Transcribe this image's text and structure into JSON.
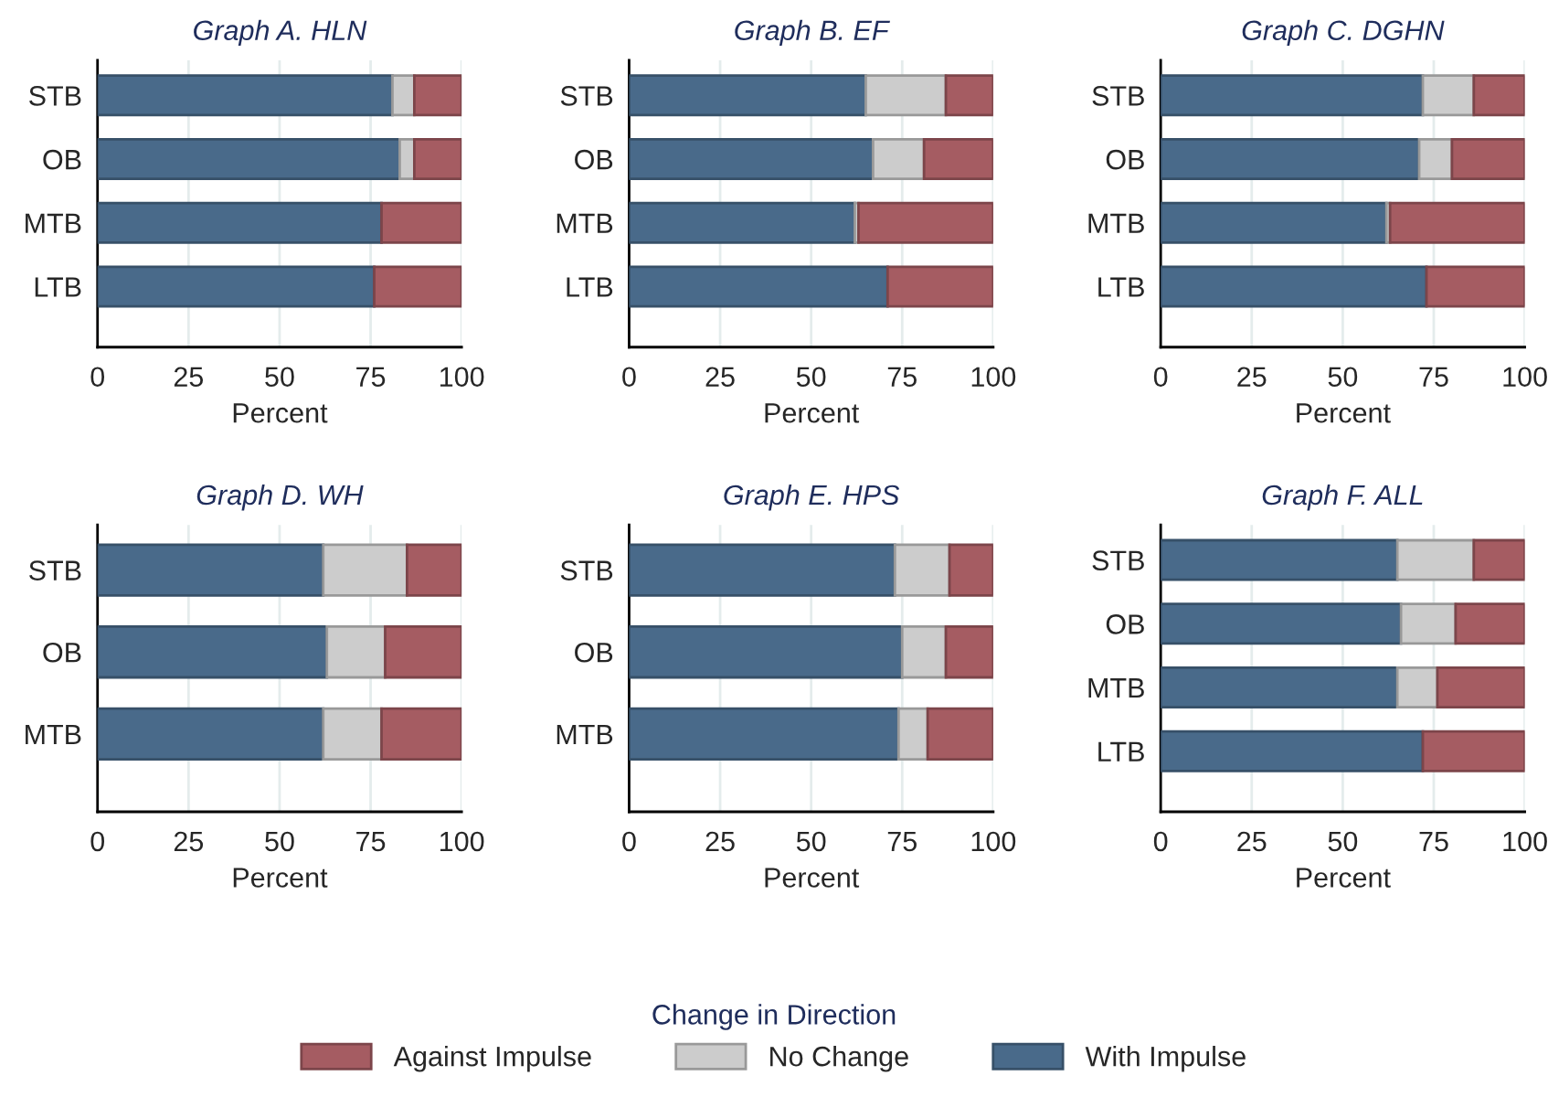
{
  "chart_data": [
    {
      "type": "bar",
      "orientation": "horizontal",
      "stacked": true,
      "title": "Graph A. HLN",
      "xlabel": "Percent",
      "categories": [
        "STB",
        "OB",
        "MTB",
        "LTB"
      ],
      "xlim": [
        0,
        100
      ],
      "xticks": [
        0,
        25,
        50,
        75,
        100
      ],
      "grid": "x",
      "series": [
        {
          "color": "#496a8a",
          "values": [
            81,
            83,
            78,
            76
          ]
        },
        {
          "color": "#cccccc",
          "values": [
            6,
            4,
            null,
            null
          ]
        },
        {
          "color": "#a55c62",
          "values": [
            13,
            13,
            22,
            24
          ]
        }
      ]
    },
    {
      "type": "bar",
      "orientation": "horizontal",
      "stacked": true,
      "title": "Graph B. EF",
      "xlabel": "Percent",
      "categories": [
        "STB",
        "OB",
        "MTB",
        "LTB"
      ],
      "xlim": [
        0,
        100
      ],
      "xticks": [
        0,
        25,
        50,
        75,
        100
      ],
      "grid": "x",
      "series": [
        {
          "color": "#496a8a",
          "values": [
            65,
            67,
            62,
            71
          ]
        },
        {
          "color": "#cccccc",
          "values": [
            22,
            14,
            1,
            null
          ]
        },
        {
          "color": "#a55c62",
          "values": [
            13,
            19,
            37,
            29
          ]
        }
      ]
    },
    {
      "type": "bar",
      "orientation": "horizontal",
      "stacked": true,
      "title": "Graph C. DGHN",
      "xlabel": "Percent",
      "categories": [
        "STB",
        "OB",
        "MTB",
        "LTB"
      ],
      "xlim": [
        0,
        100
      ],
      "xticks": [
        0,
        25,
        50,
        75,
        100
      ],
      "grid": "x",
      "series": [
        {
          "color": "#496a8a",
          "values": [
            72,
            71,
            62,
            73
          ]
        },
        {
          "color": "#cccccc",
          "values": [
            14,
            9,
            1,
            null
          ]
        },
        {
          "color": "#a55c62",
          "values": [
            14,
            20,
            37,
            27
          ]
        }
      ]
    },
    {
      "type": "bar",
      "orientation": "horizontal",
      "stacked": true,
      "title": "Graph D. WH",
      "xlabel": "Percent",
      "categories": [
        "STB",
        "OB",
        "MTB"
      ],
      "xlim": [
        0,
        100
      ],
      "xticks": [
        0,
        25,
        50,
        75,
        100
      ],
      "grid": "x",
      "series": [
        {
          "color": "#496a8a",
          "values": [
            62,
            63,
            62
          ]
        },
        {
          "color": "#cccccc",
          "values": [
            23,
            16,
            16
          ]
        },
        {
          "color": "#a55c62",
          "values": [
            15,
            21,
            22
          ]
        }
      ]
    },
    {
      "type": "bar",
      "orientation": "horizontal",
      "stacked": true,
      "title": "Graph E. HPS",
      "xlabel": "Percent",
      "categories": [
        "STB",
        "OB",
        "MTB"
      ],
      "xlim": [
        0,
        100
      ],
      "xticks": [
        0,
        25,
        50,
        75,
        100
      ],
      "grid": "x",
      "series": [
        {
          "color": "#496a8a",
          "values": [
            73,
            75,
            74
          ]
        },
        {
          "color": "#cccccc",
          "values": [
            15,
            12,
            8
          ]
        },
        {
          "color": "#a55c62",
          "values": [
            12,
            13,
            18
          ]
        }
      ]
    },
    {
      "type": "bar",
      "orientation": "horizontal",
      "stacked": true,
      "title": "Graph F. ALL",
      "xlabel": "Percent",
      "categories": [
        "STB",
        "OB",
        "MTB",
        "LTB"
      ],
      "xlim": [
        0,
        100
      ],
      "xticks": [
        0,
        25,
        50,
        75,
        100
      ],
      "grid": "x",
      "legend": "bottom",
      "legend_title": "Change in Direction",
      "series": [
        {
          "name": "With Impulse",
          "color": "#496a8a",
          "values": [
            65,
            66,
            65,
            72
          ]
        },
        {
          "name": "No Change",
          "color": "#cccccc",
          "values": [
            21,
            15,
            11,
            null
          ]
        },
        {
          "name": "Against Impulse",
          "color": "#a55c62",
          "values": [
            14,
            19,
            24,
            28
          ]
        }
      ]
    }
  ]
}
